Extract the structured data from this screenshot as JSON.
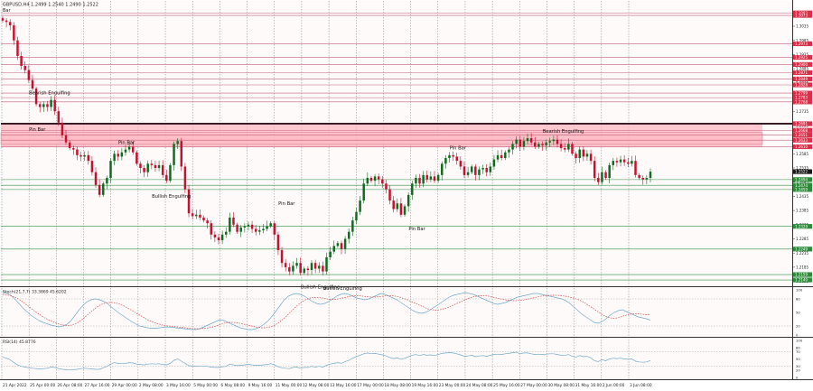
{
  "header": {
    "symbol_info": "GBPUSD,H4  1.2499 1.2540 1.2490 1.2522",
    "sub_label": "Bar"
  },
  "colors": {
    "background": "#fffafa",
    "grid": "#7f7f7f",
    "bull": "#0a6e1e",
    "bear": "#c8102e",
    "resistance_zone": "#ffb6c1",
    "resistance_line": "#c0607a",
    "support_line": "#2f8f3f",
    "level_price_bg_red": "#d9304a",
    "level_price_bg_green": "#2e8b3a",
    "current_price_bg": "#1a1a1a",
    "stoch_main": "#6fa8c8",
    "stoch_signal": "#d05050",
    "rsi": "#6fa8c8"
  },
  "chart_data": [
    {
      "type": "candlestick",
      "pane": "price",
      "ylim": [
        1.2121,
        1.3121
      ],
      "yticks": [
        "1.3035",
        "1.2985",
        "1.2935",
        "1.2885",
        "1.2835",
        "1.2785",
        "1.2735",
        "1.2685",
        "1.2635",
        "1.2585",
        "1.2535",
        "1.2485",
        "1.2435",
        "1.2385",
        "1.2335",
        "1.2285",
        "1.2235",
        "1.2185",
        "1.2135"
      ],
      "x_labels": [
        "21 Apr 2022",
        "25 Apr 00:00",
        "26 Apr 08:00",
        "27 Apr 16:00",
        "29 Apr 00:00",
        "2 May 08:00",
        "3 May 16:00",
        "5 May 00:00",
        "6 May 08:00",
        "9 May 16:00",
        "11 May 00:00",
        "12 May 08:00",
        "13 May 16:00",
        "17 May 00:00",
        "18 May 08:00",
        "19 May 16:00",
        "23 May 00:00",
        "24 May 08:00",
        "25 May 16:00",
        "27 May 00:00",
        "30 May 08:00",
        "31 May 16:00",
        "2 Jun 00:00",
        "3 Jun 08:00"
      ],
      "close": [
        1.3055,
        1.305,
        1.3038,
        1.2985,
        1.293,
        1.2895,
        1.288,
        1.2845,
        1.2815,
        1.276,
        1.275,
        1.276,
        1.275,
        1.2775,
        1.2735,
        1.2695,
        1.265,
        1.2625,
        1.2605,
        1.26,
        1.258,
        1.2575,
        1.258,
        1.256,
        1.252,
        1.2475,
        1.244,
        1.248,
        1.25,
        1.256,
        1.2585,
        1.2575,
        1.259,
        1.26,
        1.261,
        1.259,
        1.255,
        1.2535,
        1.252,
        1.255,
        1.2545,
        1.2535,
        1.2545,
        1.251,
        1.249,
        1.2545,
        1.262,
        1.263,
        1.254,
        1.246,
        1.2375,
        1.2365,
        1.237,
        1.236,
        1.235,
        1.234,
        1.23,
        1.229,
        1.228,
        1.23,
        1.231,
        1.236,
        1.2335,
        1.231,
        1.2325,
        1.233,
        1.2335,
        1.232,
        1.231,
        1.2315,
        1.232,
        1.233,
        1.234,
        1.23,
        1.2245,
        1.22,
        1.2185,
        1.217,
        1.219,
        1.22,
        1.2165,
        1.218,
        1.2175,
        1.22,
        1.218,
        1.219,
        1.217,
        1.222,
        1.224,
        1.226,
        1.227,
        1.225,
        1.2285,
        1.231,
        1.235,
        1.238,
        1.242,
        1.248,
        1.25,
        1.249,
        1.2505,
        1.2495,
        1.248,
        1.246,
        1.242,
        1.239,
        1.241,
        1.237,
        1.24,
        1.244,
        1.248,
        1.25,
        1.248,
        1.251,
        1.2495,
        1.2505,
        1.249,
        1.251,
        1.255,
        1.257,
        1.258,
        1.2575,
        1.256,
        1.254,
        1.251,
        1.252,
        1.254,
        1.251,
        1.253,
        1.2535,
        1.252,
        1.254,
        1.2565,
        1.258,
        1.257,
        1.259,
        1.26,
        1.262,
        1.2635,
        1.261,
        1.263,
        1.264,
        1.2625,
        1.261,
        1.262,
        1.2615,
        1.2625,
        1.263,
        1.2635,
        1.262,
        1.2605,
        1.26,
        1.262,
        1.2585,
        1.257,
        1.26,
        1.2575,
        1.2585,
        1.256,
        1.25,
        1.2485,
        1.252,
        1.25,
        1.2545,
        1.256,
        1.2555,
        1.2565,
        1.2555,
        1.255,
        1.256,
        1.251,
        1.25,
        1.2495,
        1.25,
        1.2522
      ],
      "annotations": [
        {
          "text": "Bearish Engulfing",
          "x": 9,
          "y": 1.2795
        },
        {
          "text": "Pin Bar",
          "x": 9,
          "y": 1.2665
        },
        {
          "text": "Pin Bar",
          "x": 33,
          "y": 1.262
        },
        {
          "text": "Bullish Engulfing",
          "x": 42,
          "y": 1.243
        },
        {
          "text": "Pin Bar",
          "x": 76,
          "y": 1.2405
        },
        {
          "text": "Bullish Engulfing",
          "x": 82,
          "y": 1.211
        },
        {
          "text": "Bullish Engulfing",
          "x": 88,
          "y": 1.2105
        },
        {
          "text": "Pin Bar",
          "x": 111,
          "y": 1.2315
        },
        {
          "text": "Pin Bar",
          "x": 122,
          "y": 1.26
        },
        {
          "text": "Bearish Engulfing",
          "x": 147,
          "y": 1.266
        }
      ],
      "resistance_zone": [
        1.2608,
        1.269
      ],
      "resistance_zone_band": [
        1.2618,
        1.266
      ],
      "resistance_levels": [
        "1.3082",
        "1.3073",
        "1.2973",
        "1.2925",
        "1.2900",
        "1.2871",
        "1.2849",
        "1.2828",
        "1.2799",
        "1.2783",
        "1.2768",
        "1.2691",
        "1.2668",
        "1.2651",
        "1.2633",
        "1.2610"
      ],
      "support_levels": [
        "1.2494",
        "1.2474",
        "1.2459",
        "1.2329",
        "1.2249",
        "1.2159",
        "1.2140"
      ],
      "current_price": "1.2522"
    },
    {
      "type": "line",
      "pane": "stochastic",
      "title": "Stoch(21,7,7) 33.3869 45.6202",
      "ylim": [
        0,
        100
      ],
      "yticks": [
        "100",
        "80",
        "50",
        "20",
        "0"
      ],
      "series": [
        {
          "name": "Main",
          "values": [
            96,
            93,
            88,
            80,
            70,
            60,
            52,
            44,
            38,
            32,
            28,
            25,
            22,
            20,
            18,
            20,
            24,
            32,
            44,
            56,
            66,
            74,
            78,
            80,
            78,
            75,
            70,
            62,
            55,
            48,
            42,
            36,
            30,
            25,
            20,
            18,
            16,
            15,
            15,
            16,
            17,
            18,
            17,
            16,
            15,
            14,
            13,
            12,
            12,
            14,
            18,
            22,
            26,
            30,
            34,
            32,
            28,
            24,
            20,
            16,
            14,
            12,
            12,
            14,
            18,
            24,
            32,
            42,
            54,
            66,
            78,
            86,
            90,
            92,
            90,
            86,
            80,
            74,
            70,
            68,
            70,
            74,
            80,
            86,
            90,
            92,
            90,
            86,
            82,
            80,
            78,
            80,
            84,
            88,
            92,
            90,
            86,
            82,
            78,
            72,
            66,
            60,
            54,
            50,
            48,
            50,
            54,
            60,
            66,
            72,
            78,
            84,
            88,
            90,
            92,
            94,
            92,
            90,
            86,
            82,
            78,
            74,
            70,
            68,
            70,
            72,
            76,
            80,
            84,
            86,
            88,
            90,
            92,
            92,
            90,
            88,
            86,
            84,
            82,
            80,
            76,
            70,
            62,
            54,
            46,
            40,
            34,
            28,
            26,
            30,
            36,
            44,
            50,
            54,
            56,
            52,
            48,
            44,
            40,
            38,
            36,
            33
          ]
        },
        {
          "name": "Signal",
          "values": [
            90,
            89,
            87,
            84,
            79,
            73,
            66,
            59,
            52,
            46,
            40,
            35,
            31,
            27,
            24,
            22,
            21,
            22,
            25,
            30,
            37,
            45,
            53,
            60,
            66,
            70,
            72,
            72,
            71,
            68,
            64,
            59,
            54,
            48,
            43,
            38,
            33,
            29,
            26,
            23,
            21,
            20,
            19,
            18,
            17,
            16,
            15,
            14,
            14,
            14,
            15,
            16,
            18,
            21,
            24,
            27,
            28,
            28,
            27,
            25,
            23,
            21,
            19,
            17,
            16,
            16,
            18,
            21,
            26,
            33,
            41,
            50,
            59,
            67,
            74,
            79,
            82,
            83,
            83,
            82,
            80,
            79,
            79,
            80,
            82,
            84,
            86,
            87,
            87,
            86,
            85,
            84,
            84,
            85,
            86,
            87,
            87,
            86,
            84,
            81,
            78,
            74,
            70,
            66,
            62,
            58,
            56,
            55,
            56,
            58,
            61,
            65,
            69,
            73,
            77,
            81,
            84,
            86,
            87,
            87,
            86,
            84,
            82,
            80,
            78,
            77,
            76,
            76,
            77,
            78,
            80,
            82,
            84,
            86,
            87,
            88,
            88,
            88,
            87,
            86,
            84,
            82,
            79,
            75,
            70,
            64,
            58,
            52,
            46,
            41,
            38,
            37,
            38,
            41,
            44,
            46,
            47,
            47,
            46,
            45,
            45.6
          ]
        }
      ]
    },
    {
      "type": "line",
      "pane": "rsi",
      "title": "RSI(14) 45.8776",
      "ylim": [
        0,
        100
      ],
      "yticks": [
        "100",
        "80",
        "70",
        "50",
        "30",
        "20",
        "0"
      ],
      "series": [
        {
          "name": "RSI",
          "values": [
            55,
            52,
            48,
            40,
            34,
            30,
            28,
            26,
            25,
            24,
            23,
            24,
            25,
            28,
            27,
            24,
            22,
            21,
            20,
            21,
            22,
            24,
            25,
            24,
            23,
            22,
            22,
            26,
            30,
            36,
            40,
            38,
            37,
            38,
            40,
            39,
            36,
            35,
            34,
            36,
            37,
            36,
            37,
            35,
            34,
            38,
            46,
            50,
            44,
            38,
            32,
            31,
            31,
            30,
            30,
            30,
            28,
            27,
            27,
            29,
            30,
            36,
            34,
            32,
            33,
            34,
            35,
            34,
            33,
            33,
            34,
            35,
            37,
            34,
            29,
            26,
            25,
            24,
            27,
            28,
            25,
            27,
            27,
            30,
            28,
            30,
            28,
            33,
            36,
            38,
            40,
            38,
            43,
            46,
            52,
            56,
            60,
            64,
            66,
            64,
            65,
            63,
            61,
            58,
            54,
            51,
            53,
            49,
            52,
            56,
            60,
            62,
            59,
            62,
            60,
            61,
            59,
            62,
            65,
            66,
            67,
            66,
            64,
            61,
            57,
            58,
            60,
            56,
            58,
            59,
            57,
            60,
            62,
            63,
            62,
            64,
            65,
            67,
            68,
            64,
            66,
            66,
            64,
            62,
            63,
            62,
            63,
            64,
            64,
            62,
            60,
            59,
            62,
            57,
            55,
            59,
            56,
            57,
            53,
            45,
            43,
            48,
            45,
            50,
            52,
            51,
            52,
            50,
            49,
            50,
            44,
            42,
            41,
            42,
            45.9
          ]
        }
      ]
    }
  ]
}
